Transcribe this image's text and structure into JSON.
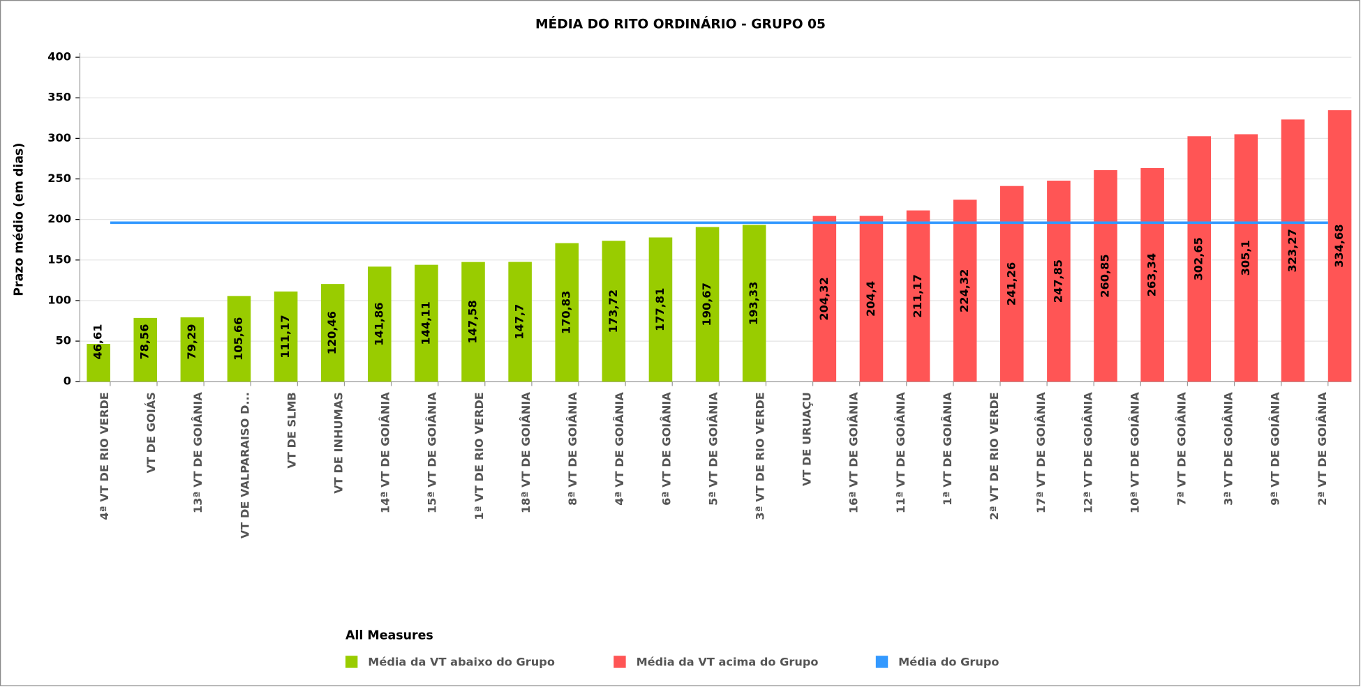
{
  "chart_data": {
    "type": "bar",
    "title": "MÉDIA DO RITO ORDINÁRIO - GRUPO 05",
    "y_label": "Prazo médio (em dias)",
    "legend_title": "All Measures",
    "categories": [
      "4ª VT DE RIO VERDE",
      "VT DE GOIÁS",
      "13ª VT DE GOIÂNIA",
      "VT DE VALPARAISO D...",
      "VT DE SLMB",
      "VT DE INHUMAS",
      "14ª VT DE GOIÂNIA",
      "15ª VT DE GOIÂNIA",
      "1ª VT DE RIO VERDE",
      "18ª VT DE GOIÂNIA",
      "8ª VT DE GOIÂNIA",
      "4ª VT DE GOIÂNIA",
      "6ª VT DE GOIÂNIA",
      "5ª VT DE GOIÂNIA",
      "3ª VT DE RIO VERDE",
      "VT DE URUAÇU",
      "16ª VT DE GOIÂNIA",
      "11ª VT DE GOIÂNIA",
      "1ª VT DE GOIÂNIA",
      "2ª VT DE RIO VERDE",
      "17ª VT DE GOIÂNIA",
      "12ª VT DE GOIÂNIA",
      "10ª VT DE GOIÂNIA",
      "7ª VT DE GOIÂNIA",
      "3ª VT DE GOIÂNIA",
      "9ª VT DE GOIÂNIA",
      "2ª VT DE GOIÂNIA"
    ],
    "series": [
      {
        "name": "Média da VT abaixo do Grupo",
        "color": "#99cc00",
        "type": "bar",
        "values": [
          46.61,
          78.56,
          79.29,
          105.66,
          111.17,
          120.46,
          141.86,
          144.11,
          147.58,
          147.7,
          170.83,
          173.72,
          177.81,
          190.67,
          193.33,
          null,
          null,
          null,
          null,
          null,
          null,
          null,
          null,
          null,
          null,
          null,
          null
        ],
        "value_labels": [
          "46,61",
          "78,56",
          "79,29",
          "105,66",
          "111,17",
          "120,46",
          "141,86",
          "144,11",
          "147,58",
          "147,7",
          "170,83",
          "173,72",
          "177,81",
          "190,67",
          "193,33",
          null,
          null,
          null,
          null,
          null,
          null,
          null,
          null,
          null,
          null,
          null,
          null
        ]
      },
      {
        "name": "Média da VT acima do Grupo",
        "color": "#ff5555",
        "type": "bar",
        "values": [
          null,
          null,
          null,
          null,
          null,
          null,
          null,
          null,
          null,
          null,
          null,
          null,
          null,
          null,
          null,
          204.32,
          204.4,
          211.17,
          224.32,
          241.26,
          247.85,
          260.85,
          263.34,
          302.65,
          305.1,
          323.27,
          334.68
        ],
        "value_labels": [
          null,
          null,
          null,
          null,
          null,
          null,
          null,
          null,
          null,
          null,
          null,
          null,
          null,
          null,
          null,
          "204,32",
          "204,4",
          "211,17",
          "224,32",
          "241,26",
          "247,85",
          "260,85",
          "263,34",
          "302,65",
          "305,1",
          "323,27",
          "334,68"
        ]
      },
      {
        "name": "Média do Grupo",
        "color": "#3399ff",
        "type": "line",
        "values": [
          196,
          196,
          196,
          196,
          196,
          196,
          196,
          196,
          196,
          196,
          196,
          196,
          196,
          196,
          196,
          196,
          196,
          196,
          196,
          196,
          196,
          196,
          196,
          196,
          196,
          196,
          196
        ]
      }
    ],
    "ylim": [
      0,
      400
    ],
    "yticks": [
      0,
      50,
      100,
      150,
      200,
      250,
      300,
      350,
      400
    ],
    "grid": true
  }
}
